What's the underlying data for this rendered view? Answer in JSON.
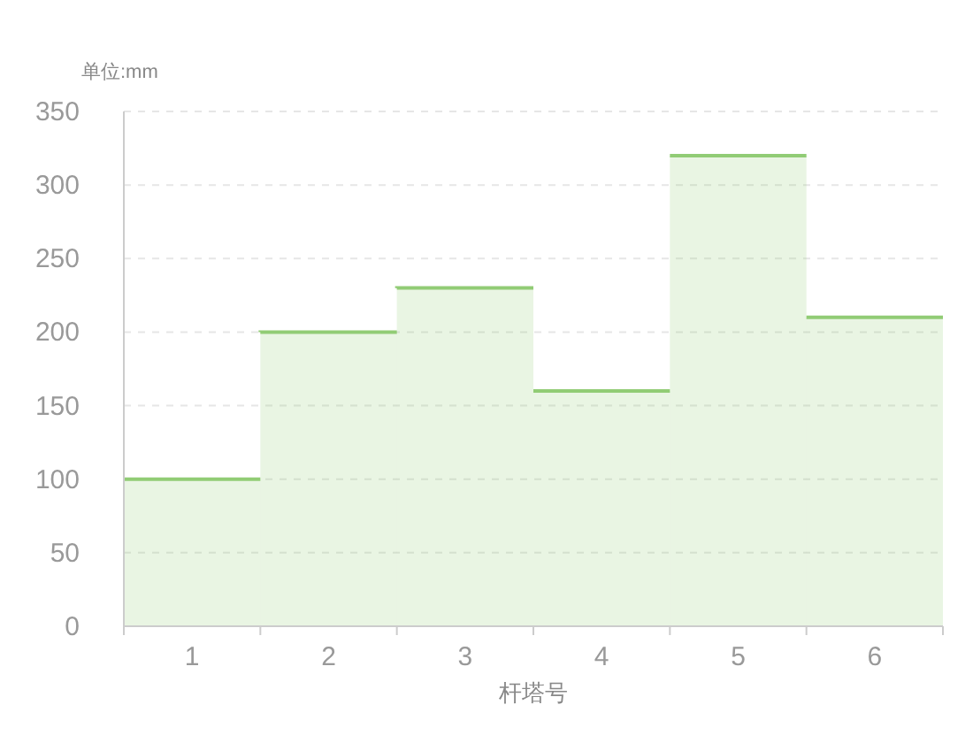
{
  "chart_data": {
    "type": "bar",
    "ylabel": "单位:mm",
    "xlabel": "杆塔号",
    "categories": [
      "1",
      "2",
      "3",
      "4",
      "5",
      "6"
    ],
    "series": [
      {
        "color": "#91cc75",
        "values": [
          100,
          200,
          230,
          160,
          320,
          210
        ]
      }
    ],
    "ylim": [
      0,
      350
    ],
    "yticks": [
      0,
      50,
      100,
      150,
      200,
      250,
      300,
      350
    ],
    "grid": "y"
  }
}
